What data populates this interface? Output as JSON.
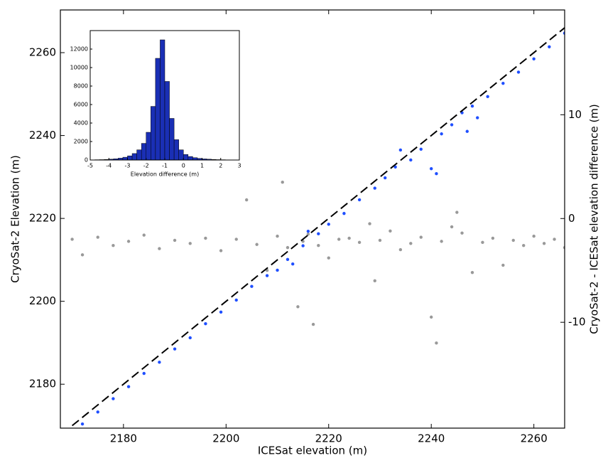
{
  "chart_data": [
    {
      "type": "scatter",
      "xlabel": "ICESat elevation (m)",
      "ylabel": "CryoSat-2 Elevation (m)",
      "y2label": "CryoSat-2 - ICESat elevation difference (m)",
      "xlim": [
        2167.7,
        2266
      ],
      "ylim": [
        2169.4,
        2270.3
      ],
      "y2lim": [
        -20.2,
        20.1
      ],
      "xticks": [
        2180,
        2200,
        2220,
        2240,
        2260
      ],
      "yticks": [
        2180,
        2200,
        2220,
        2240,
        2260
      ],
      "y2ticks": [
        -10,
        0,
        10
      ],
      "reference_line": {
        "x": [
          2170,
          2266
        ],
        "y": [
          2170,
          2266
        ],
        "color": "#000000",
        "dash": true
      },
      "series": [
        {
          "axis": "y2",
          "color": "#999999",
          "x": [
            2170,
            2172,
            2175,
            2178,
            2181,
            2184,
            2187,
            2190,
            2193,
            2196,
            2199,
            2202,
            2204,
            2206,
            2208,
            2210,
            2211,
            2212,
            2214,
            2215,
            2216,
            2217,
            2218,
            2220,
            2222,
            2224,
            2226,
            2228,
            2229,
            2230,
            2232,
            2234,
            2236,
            2238,
            2240,
            2241,
            2242,
            2244,
            2245,
            2246,
            2248,
            2250,
            2252,
            2254,
            2256,
            2258,
            2260,
            2262,
            2264,
            2266
          ],
          "values": [
            -2.0,
            -3.5,
            -1.8,
            -2.6,
            -2.2,
            -1.6,
            -2.9,
            -2.1,
            -2.4,
            -1.9,
            -3.1,
            -2.0,
            1.8,
            -2.5,
            -5.0,
            -1.7,
            3.5,
            -2.8,
            -8.5,
            -2.2,
            -1.5,
            -10.2,
            -2.6,
            -3.8,
            -2.0,
            -1.9,
            -2.3,
            -0.5,
            -6.0,
            -2.1,
            -1.2,
            -3.0,
            -2.4,
            -1.8,
            -9.5,
            -12.0,
            -2.2,
            -0.8,
            0.6,
            -1.4,
            -5.2,
            -2.3,
            -1.9,
            -4.5,
            -2.1,
            -2.6,
            -1.7,
            -2.4,
            -2.0,
            -2.8
          ]
        },
        {
          "color": "#1f4fff",
          "x": [
            2172,
            2175,
            2178,
            2181,
            2184,
            2187,
            2190,
            2193,
            2196,
            2199,
            2202,
            2205,
            2208,
            2210,
            2212,
            2213,
            2215,
            2216,
            2218,
            2220,
            2223,
            2226,
            2229,
            2231,
            2233,
            2234,
            2236,
            2238,
            2240,
            2241,
            2242,
            2244,
            2246,
            2247,
            2248,
            2249,
            2251,
            2254,
            2257,
            2260,
            2263,
            2266
          ],
          "values": [
            2170.4,
            2173.3,
            2176.5,
            2179.4,
            2182.6,
            2185.3,
            2188.5,
            2191.2,
            2194.6,
            2197.4,
            2200.3,
            2203.6,
            2206.2,
            2207.5,
            2210.1,
            2209.0,
            2213.4,
            2216.9,
            2216.3,
            2218.6,
            2221.2,
            2224.5,
            2227.3,
            2229.8,
            2232.4,
            2236.5,
            2234.1,
            2236.7,
            2232.0,
            2230.8,
            2240.4,
            2242.6,
            2245.5,
            2241.0,
            2247.1,
            2244.3,
            2249.4,
            2252.6,
            2255.3,
            2258.5,
            2261.4,
            2264.7
          ]
        }
      ]
    },
    {
      "type": "histogram",
      "xlabel": "Elevation difference (m)",
      "color": "#1a2fb5",
      "xlim": [
        -5,
        3
      ],
      "ylim": [
        0,
        14000
      ],
      "xticks": [
        -5,
        -4,
        -3,
        -2,
        -1,
        0,
        1,
        2,
        3
      ],
      "yticks": [
        0,
        2000,
        4000,
        6000,
        8000,
        10000,
        12000
      ],
      "bins": [
        -5,
        -4.75,
        -4.5,
        -4.25,
        -4,
        -3.75,
        -3.5,
        -3.25,
        -3,
        -2.75,
        -2.5,
        -2.25,
        -2,
        -1.75,
        -1.5,
        -1.25,
        -1,
        -0.75,
        -0.5,
        -0.25,
        0,
        0.25,
        0.5,
        0.75,
        1,
        1.25,
        1.5,
        1.75,
        2,
        2.25,
        2.5,
        2.75,
        3
      ],
      "values": [
        20,
        30,
        40,
        60,
        90,
        130,
        200,
        300,
        450,
        700,
        1100,
        1800,
        3000,
        5800,
        11000,
        13000,
        8500,
        4500,
        2200,
        1100,
        600,
        380,
        250,
        170,
        120,
        90,
        60,
        40,
        30,
        20,
        12,
        8
      ]
    }
  ]
}
